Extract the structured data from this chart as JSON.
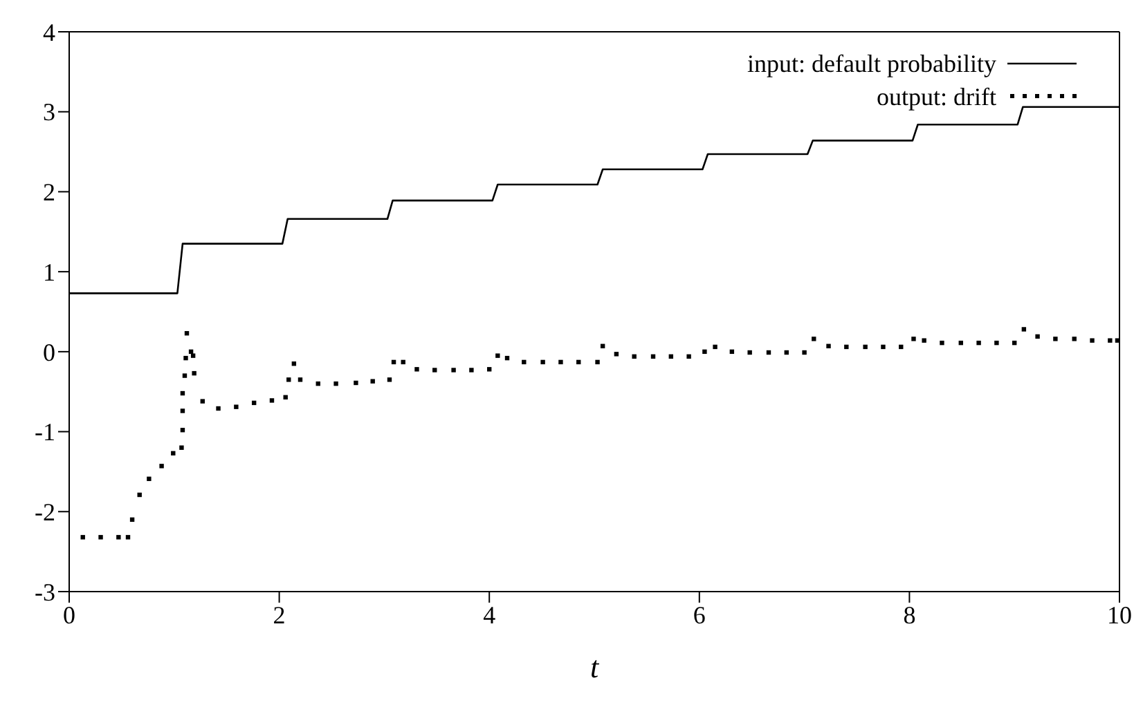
{
  "chart_data": {
    "type": "line",
    "xlabel": "t",
    "xlim": [
      0,
      10
    ],
    "xticks": [
      0,
      2,
      4,
      6,
      8,
      10
    ],
    "ylim": [
      -3,
      4
    ],
    "yticks": [
      -3,
      -2,
      -1,
      0,
      1,
      2,
      3,
      4
    ],
    "legend": "top right",
    "series": [
      {
        "name": "input: default probability",
        "color": "#000000",
        "line_style": "solid",
        "marker": "none",
        "x": [
          0,
          1.03,
          1.08,
          2.03,
          2.08,
          3.03,
          3.08,
          4.03,
          4.08,
          5.03,
          5.08,
          6.03,
          6.08,
          7.03,
          7.08,
          8.03,
          8.08,
          9.03,
          9.08,
          10
        ],
        "values": [
          0.73,
          0.73,
          1.35,
          1.35,
          1.66,
          1.66,
          1.89,
          1.89,
          2.09,
          2.09,
          2.28,
          2.28,
          2.47,
          2.47,
          2.64,
          2.64,
          2.84,
          2.84,
          3.06,
          3.06
        ]
      },
      {
        "name": "output: drift",
        "type": "scatter",
        "color": "#000000",
        "marker": "square",
        "x": [
          0.13,
          0.3,
          0.47,
          0.56,
          0.6,
          0.67,
          0.76,
          0.88,
          0.99,
          1.07,
          1.08,
          1.08,
          1.08,
          1.1,
          1.11,
          1.12,
          1.16,
          1.18,
          1.19,
          1.27,
          1.42,
          1.59,
          1.76,
          1.93,
          2.06,
          2.09,
          2.14,
          2.2,
          2.37,
          2.54,
          2.73,
          2.89,
          3.05,
          3.09,
          3.18,
          3.31,
          3.48,
          3.66,
          3.83,
          4.0,
          4.08,
          4.17,
          4.33,
          4.51,
          4.68,
          4.85,
          5.03,
          5.08,
          5.21,
          5.38,
          5.56,
          5.73,
          5.9,
          6.05,
          6.15,
          6.31,
          6.48,
          6.66,
          6.83,
          7.0,
          7.09,
          7.23,
          7.4,
          7.58,
          7.75,
          7.92,
          8.04,
          8.14,
          8.31,
          8.49,
          8.66,
          8.83,
          9.0,
          9.09,
          9.22,
          9.39,
          9.57,
          9.74,
          9.91,
          9.98
        ],
        "values": [
          -2.32,
          -2.32,
          -2.32,
          -2.32,
          -2.1,
          -1.79,
          -1.59,
          -1.43,
          -1.27,
          -1.2,
          -0.98,
          -0.74,
          -0.52,
          -0.3,
          -0.08,
          0.23,
          0.0,
          -0.05,
          -0.27,
          -0.62,
          -0.71,
          -0.69,
          -0.64,
          -0.61,
          -0.57,
          -0.35,
          -0.15,
          -0.35,
          -0.4,
          -0.4,
          -0.39,
          -0.37,
          -0.35,
          -0.13,
          -0.13,
          -0.22,
          -0.23,
          -0.23,
          -0.23,
          -0.22,
          -0.05,
          -0.08,
          -0.13,
          -0.13,
          -0.13,
          -0.13,
          -0.13,
          0.07,
          -0.03,
          -0.06,
          -0.06,
          -0.06,
          -0.06,
          0.0,
          0.06,
          0.0,
          -0.01,
          -0.01,
          -0.01,
          -0.01,
          0.16,
          0.07,
          0.06,
          0.06,
          0.06,
          0.06,
          0.16,
          0.14,
          0.11,
          0.11,
          0.11,
          0.11,
          0.11,
          0.28,
          0.19,
          0.16,
          0.16,
          0.14,
          0.14,
          0.14
        ]
      }
    ]
  }
}
